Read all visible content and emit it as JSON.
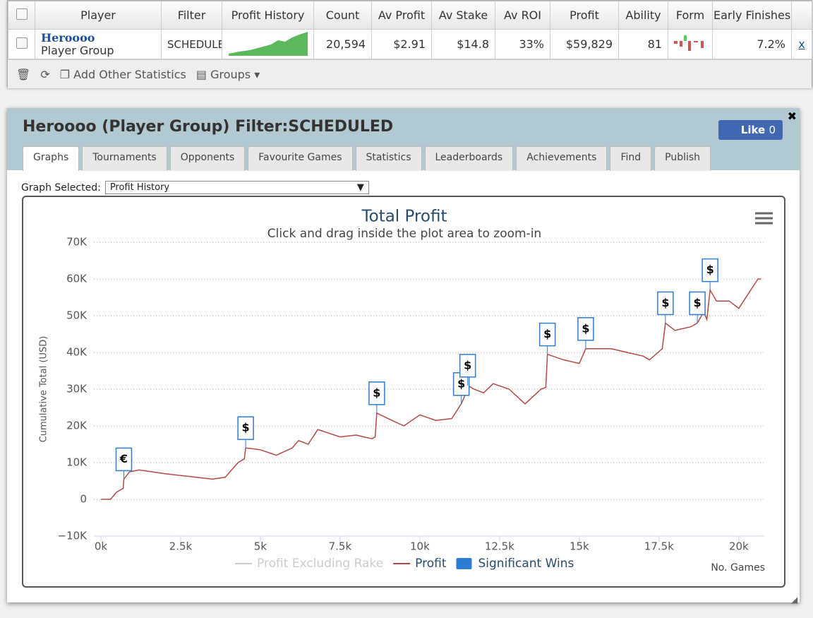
{
  "table": {
    "headers": [
      "Player",
      "Filter",
      "Profit History",
      "Count",
      "Av Profit",
      "Av Stake",
      "Av ROI",
      "Profit",
      "Ability",
      "Form",
      "Early Finishes"
    ],
    "row": {
      "player": "Heroooo",
      "group": "Player Group",
      "filter": "SCHEDULED",
      "count": "20,594",
      "av_profit": "$2.91",
      "av_stake": "$14.8",
      "av_roi": "33%",
      "profit": "$59,829",
      "ability": "81",
      "early_finishes": "7.2%",
      "remove": "x"
    }
  },
  "toolbar": {
    "add_stats": "Add Other Statistics",
    "groups": "Groups"
  },
  "panel": {
    "title": "Heroooo (Player Group) Filter:SCHEDULED",
    "like": "Like",
    "like_count": 0,
    "tabs": [
      "Graphs",
      "Tournaments",
      "Opponents",
      "Favourite Games",
      "Statistics",
      "Leaderboards",
      "Achievements",
      "Find",
      "Publish"
    ],
    "graph_selected_label": "Graph Selected:",
    "graph_selected": "Profit History"
  },
  "chart_data": {
    "type": "line",
    "title": "Total Profit",
    "subtitle": "Click and drag inside the plot area to zoom-in",
    "y_label": "Cumulative Total (USD)",
    "x_label": "No. Games",
    "xlim": [
      -220,
      20800
    ],
    "xticks": [
      {
        "value": 0,
        "label": "0k"
      },
      {
        "value": 2500,
        "label": "2.5k"
      },
      {
        "value": 5000,
        "label": "5k"
      },
      {
        "value": 7500,
        "label": "7.5k"
      },
      {
        "value": 10000,
        "label": "10k"
      },
      {
        "value": 12500,
        "label": "12.5k"
      },
      {
        "value": 15000,
        "label": "15k"
      },
      {
        "value": 17500,
        "label": "17.5k"
      },
      {
        "value": 20000,
        "label": "20k"
      }
    ],
    "ylim": [
      -10000,
      70000
    ],
    "yticks": [
      {
        "value": -10000,
        "label": "−10K"
      },
      0,
      {
        "value": 10000,
        "label": "10K"
      },
      {
        "value": 20000,
        "label": "20K"
      },
      {
        "value": 30000,
        "label": "30K"
      },
      {
        "value": 40000,
        "label": "40K"
      },
      {
        "value": 50000,
        "label": "50K"
      },
      {
        "value": 60000,
        "label": "60K"
      },
      {
        "value": 70000,
        "label": "70K"
      }
    ],
    "grid": true,
    "legend": "bottom",
    "series": [
      {
        "name": "Profit Excluding Rake",
        "color": "#cccccc",
        "visible": false
      },
      {
        "name": "Profit",
        "color": "#b5494a",
        "visible": true,
        "x": [
          0,
          300,
          500,
          700,
          720,
          900,
          1200,
          2000,
          3000,
          3500,
          3900,
          4100,
          4300,
          4500,
          4540,
          5000,
          5500,
          6000,
          6200,
          6500,
          6800,
          7500,
          8000,
          8500,
          8600,
          8650,
          9000,
          9500,
          10000,
          10500,
          11000,
          11300,
          11400,
          11500,
          11700,
          12000,
          12300,
          12800,
          13300,
          13800,
          13950,
          14000,
          14500,
          15000,
          15200,
          16000,
          17000,
          17200,
          17600,
          17700,
          18000,
          18500,
          18700,
          18900,
          19000,
          19100,
          19300,
          19700,
          20000,
          20300,
          20600,
          20700
        ],
        "values": [
          0,
          0,
          2000,
          3000,
          5500,
          7500,
          8000,
          7000,
          6000,
          5500,
          6000,
          8000,
          10000,
          11000,
          14000,
          13500,
          12000,
          14000,
          16000,
          15000,
          19000,
          17000,
          17500,
          16500,
          17000,
          23500,
          22000,
          20000,
          23000,
          21500,
          22000,
          26000,
          28000,
          31000,
          30000,
          29000,
          31500,
          30000,
          26000,
          30000,
          30500,
          39500,
          38000,
          37000,
          41000,
          41000,
          39000,
          38000,
          41000,
          48000,
          46000,
          47000,
          48000,
          51000,
          49000,
          57000,
          54000,
          54000,
          52000,
          56000,
          60000,
          60000
        ]
      },
      {
        "name": "Significant Wins",
        "color": "#2e7cd6",
        "visible": true,
        "flags": true,
        "x": [
          720,
          4540,
          8650,
          11300,
          11500,
          14000,
          15200,
          17700,
          18700,
          19100
        ],
        "values": [
          5500,
          14000,
          23500,
          26000,
          31000,
          39500,
          41000,
          48000,
          48000,
          57000
        ],
        "labels": [
          "€",
          "$",
          "$",
          "$",
          "$",
          "$",
          "$",
          "$",
          "$",
          "$"
        ]
      }
    ]
  }
}
